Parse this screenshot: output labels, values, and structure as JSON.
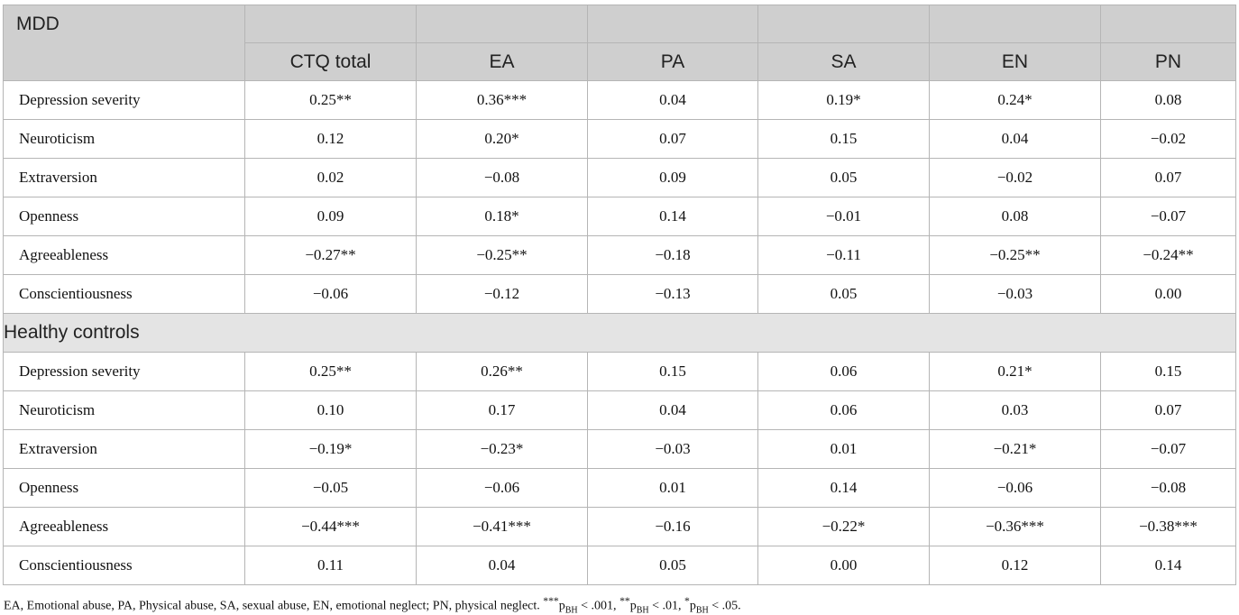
{
  "table": {
    "group1_title": "MDD",
    "group2_title": "Healthy controls",
    "columns": [
      "CTQ total",
      "EA",
      "PA",
      "SA",
      "EN",
      "PN"
    ],
    "mdd_rows": [
      {
        "label": "Depression severity",
        "values": [
          "0.25**",
          "0.36***",
          "0.04",
          "0.19*",
          "0.24*",
          "0.08"
        ]
      },
      {
        "label": "Neuroticism",
        "values": [
          "0.12",
          "0.20*",
          "0.07",
          "0.15",
          "0.04",
          "−0.02"
        ]
      },
      {
        "label": "Extraversion",
        "values": [
          "0.02",
          "−0.08",
          "0.09",
          "0.05",
          "−0.02",
          "0.07"
        ]
      },
      {
        "label": "Openness",
        "values": [
          "0.09",
          "0.18*",
          "0.14",
          "−0.01",
          "0.08",
          "−0.07"
        ]
      },
      {
        "label": "Agreeableness",
        "values": [
          "−0.27**",
          "−0.25**",
          "−0.18",
          "−0.11",
          "−0.25**",
          "−0.24**"
        ]
      },
      {
        "label": "Conscientiousness",
        "values": [
          "−0.06",
          "−0.12",
          "−0.13",
          "0.05",
          "−0.03",
          "0.00"
        ]
      }
    ],
    "hc_rows": [
      {
        "label": "Depression severity",
        "values": [
          "0.25**",
          "0.26**",
          "0.15",
          "0.06",
          "0.21*",
          "0.15"
        ]
      },
      {
        "label": "Neuroticism",
        "values": [
          "0.10",
          "0.17",
          "0.04",
          "0.06",
          "0.03",
          "0.07"
        ]
      },
      {
        "label": "Extraversion",
        "values": [
          "−0.19*",
          "−0.23*",
          "−0.03",
          "0.01",
          "−0.21*",
          "−0.07"
        ]
      },
      {
        "label": "Openness",
        "values": [
          "−0.05",
          "−0.06",
          "0.01",
          "0.14",
          "−0.06",
          "−0.08"
        ]
      },
      {
        "label": "Agreeableness",
        "values": [
          "−0.44***",
          "−0.41***",
          "−0.16",
          "−0.22*",
          "−0.36***",
          "−0.38***"
        ]
      },
      {
        "label": "Conscientiousness",
        "values": [
          "0.11",
          "0.04",
          "0.05",
          "0.00",
          "0.12",
          "0.14"
        ]
      }
    ]
  },
  "footnote": {
    "abbrev": "EA, Emotional abuse, PA, Physical abuse, SA, sexual abuse, EN, emotional neglect; PN, physical neglect. ",
    "p_letter": "p",
    "p_sub": "BH",
    "sig1_stars": "***",
    "sig1_rest": " < .001, ",
    "sig2_stars": "**",
    "sig2_rest": " < .01, ",
    "sig3_stars": "*",
    "sig3_rest": " < .05."
  }
}
